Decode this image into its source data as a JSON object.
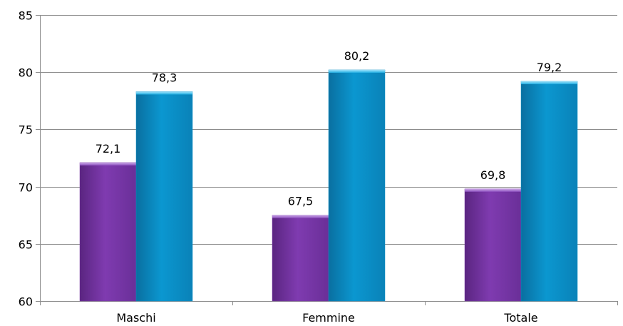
{
  "chart_data": {
    "type": "bar",
    "categories": [
      "Maschi",
      "Femmine",
      "Totale"
    ],
    "series": [
      {
        "values": [
          72.1,
          67.5,
          69.8
        ],
        "labels": [
          "72,1",
          "67,5",
          "69,8"
        ],
        "color": "#7a3aa8"
      },
      {
        "values": [
          78.3,
          80.2,
          79.2
        ],
        "labels": [
          "78,3",
          "80,2",
          "79,2"
        ],
        "color": "#0a90c8"
      }
    ],
    "ylim": [
      60,
      85
    ],
    "yticks": [
      60,
      65,
      70,
      75,
      80,
      85
    ],
    "grid": true,
    "legend": "none",
    "title": "",
    "xlabel": "",
    "ylabel": ""
  }
}
